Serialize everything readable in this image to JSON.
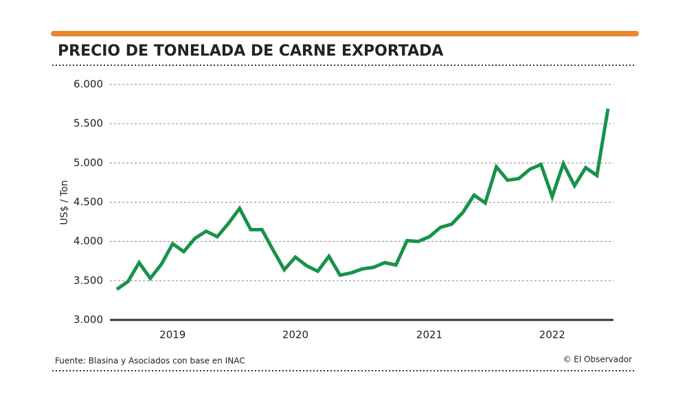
{
  "chart_data": {
    "type": "line",
    "title": "PRECIO DE TONELADA DE CARNE EXPORTADA",
    "y_label": "US$ / Ton",
    "source": "Fuente: Blasina y Asociados con base en INAC",
    "credit": "© El Observador",
    "categories": [
      null,
      null,
      null,
      null,
      null,
      "2019",
      null,
      null,
      null,
      null,
      null,
      null,
      null,
      null,
      null,
      null,
      "2020",
      null,
      null,
      null,
      null,
      null,
      null,
      null,
      null,
      null,
      null,
      null,
      "2021",
      null,
      null,
      null,
      null,
      null,
      null,
      null,
      null,
      null,
      null,
      "2022",
      null,
      null,
      null,
      null,
      null
    ],
    "series": [
      {
        "name": "US$ / Ton",
        "color": "#17924a",
        "values": [
          3390,
          3490,
          3730,
          3530,
          3710,
          3970,
          3870,
          4040,
          4130,
          4060,
          4230,
          4420,
          4150,
          4150,
          3890,
          3640,
          3800,
          3690,
          3620,
          3810,
          3570,
          3600,
          3650,
          3670,
          3730,
          3700,
          4010,
          4000,
          4060,
          4180,
          4220,
          4370,
          4590,
          4490,
          4950,
          4780,
          4800,
          4920,
          4980,
          4570,
          4990,
          4710,
          4940,
          4840,
          5690
        ]
      }
    ],
    "ylim": [
      3000,
      6000
    ],
    "yticks": [
      {
        "value": 3000,
        "label": "3.000"
      },
      {
        "value": 3500,
        "label": "3.500"
      },
      {
        "value": 4000,
        "label": "4.000"
      },
      {
        "value": 4500,
        "label": "4.500"
      },
      {
        "value": 5000,
        "label": "5.000"
      },
      {
        "value": 5500,
        "label": "5.500"
      },
      {
        "value": 6000,
        "label": "6.000"
      }
    ],
    "grid": true
  }
}
